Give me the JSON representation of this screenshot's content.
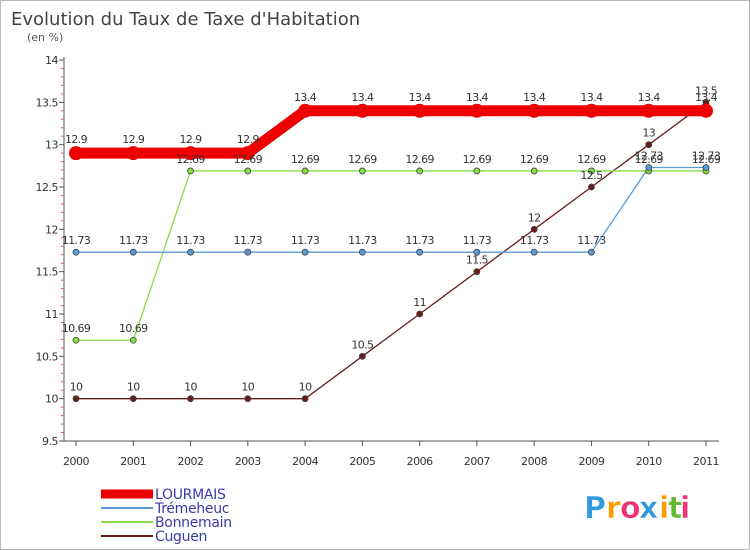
{
  "chart_data": {
    "type": "line",
    "title": "Evolution du Taux de Taxe d'Habitation",
    "subtitle": "(en %)",
    "x": [
      "2000",
      "2001",
      "2002",
      "2003",
      "2004",
      "2005",
      "2006",
      "2007",
      "2008",
      "2009",
      "2010",
      "2011"
    ],
    "ylim": [
      9.5,
      14
    ],
    "yticks": [
      "9.5",
      "10",
      "10.5",
      "11",
      "11.5",
      "12",
      "12.5",
      "13",
      "13.5",
      "14"
    ],
    "grid": false,
    "legend_position": "bottom-left",
    "series": [
      {
        "name": "LOURMAIS",
        "color": "#ee0000",
        "values": [
          12.9,
          12.9,
          12.9,
          12.9,
          13.4,
          13.4,
          13.4,
          13.4,
          13.4,
          13.4,
          13.4,
          13.4
        ],
        "labels": [
          "12.9",
          "12.9",
          "12.9",
          "12.9",
          "13.4",
          "13.4",
          "13.4",
          "13.4",
          "13.4",
          "13.4",
          "13.4",
          "13.4"
        ]
      },
      {
        "name": "Trémeheuc",
        "color": "#5b9bd5",
        "values": [
          11.73,
          11.73,
          11.73,
          11.73,
          11.73,
          11.73,
          11.73,
          11.73,
          11.73,
          11.73,
          12.73,
          12.73
        ],
        "labels": [
          "11.73",
          "11.73",
          "11.73",
          "11.73",
          "11.73",
          "11.73",
          "11.73",
          "11.73",
          "11.73",
          "11.73",
          "12.73",
          "12.73"
        ]
      },
      {
        "name": "Bonnemain",
        "color": "#88dd44",
        "values": [
          10.69,
          10.69,
          12.69,
          12.69,
          12.69,
          12.69,
          12.69,
          12.69,
          12.69,
          12.69,
          12.69,
          12.69
        ],
        "labels": [
          "10.69",
          "10.69",
          "12.69",
          "12.69",
          "12.69",
          "12.69",
          "12.69",
          "12.69",
          "12.69",
          "12.69",
          "12.69",
          "12.69"
        ]
      },
      {
        "name": "Cuguen",
        "color": "#6b1c1c",
        "values": [
          10,
          10,
          10,
          10,
          10,
          10.5,
          11,
          11.5,
          12,
          12.5,
          13,
          13.5
        ],
        "labels": [
          "10",
          "10",
          "10",
          "10",
          "10",
          "10.5",
          "11",
          "11.5",
          "12",
          "12.5",
          "13",
          "13.5"
        ]
      }
    ]
  },
  "brand": {
    "logo_letters": [
      "P",
      "r",
      "o",
      "x",
      "i",
      "t",
      "i"
    ],
    "logo_colors": [
      "#3399dd",
      "#ff9900",
      "#ee3377",
      "#3399dd",
      "#ff9900",
      "#66bb33",
      "#ee3377"
    ]
  }
}
